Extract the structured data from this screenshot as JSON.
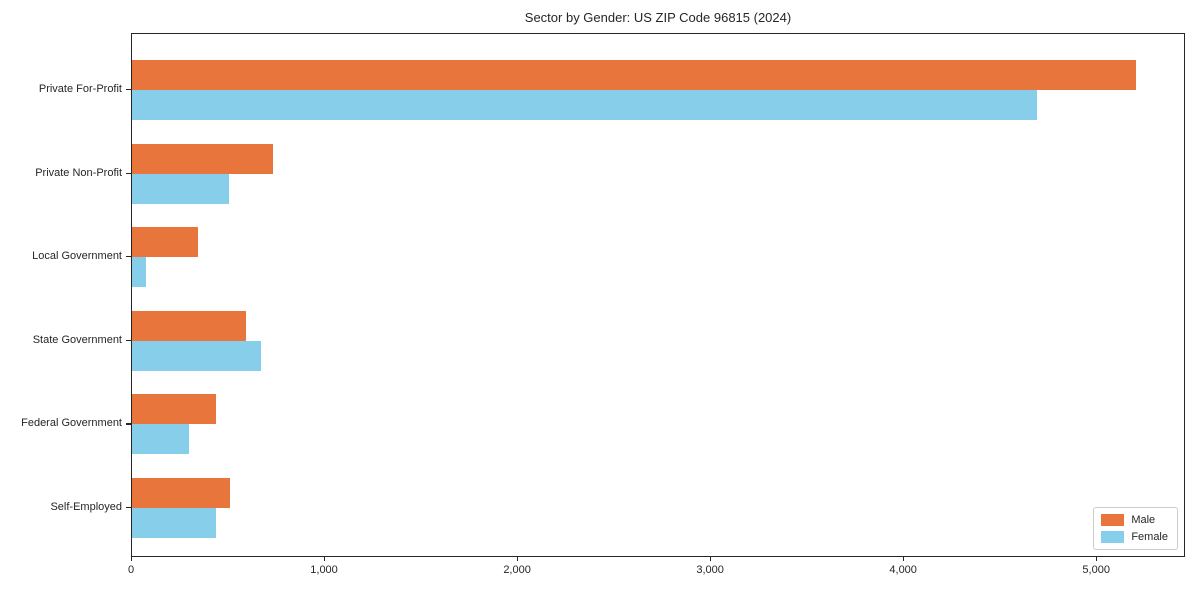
{
  "chart_data": {
    "type": "bar",
    "orientation": "horizontal",
    "title": "Sector by Gender: US ZIP Code 96815 (2024)",
    "categories": [
      "Private For-Profit",
      "Private Non-Profit",
      "Local Government",
      "State Government",
      "Federal Government",
      "Self-Employed"
    ],
    "series": [
      {
        "name": "Male",
        "color": "#e8763c",
        "values": [
          5200,
          730,
          340,
          590,
          435,
          510
        ]
      },
      {
        "name": "Female",
        "color": "#87ceeb",
        "values": [
          4690,
          500,
          75,
          670,
          295,
          435
        ]
      }
    ],
    "xlim": [
      0,
      5460
    ],
    "x_ticks": [
      {
        "value": 0,
        "label": "0"
      },
      {
        "value": 1000,
        "label": "1,000"
      },
      {
        "value": 2000,
        "label": "2,000"
      },
      {
        "value": 3000,
        "label": "3,000"
      },
      {
        "value": 4000,
        "label": "4,000"
      },
      {
        "value": 5000,
        "label": "5,000"
      }
    ],
    "xlabel": "",
    "ylabel": "",
    "grid": false,
    "legend_position": "lower right"
  }
}
